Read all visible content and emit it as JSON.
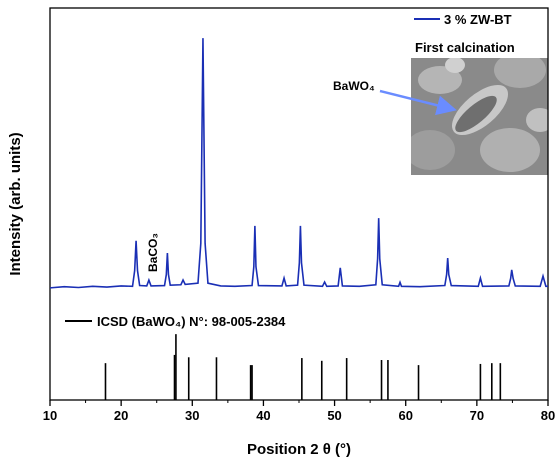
{
  "chart_data": {
    "type": "line",
    "x_label": "Position 2 θ (°)",
    "y_label": "Intensity (arb. units)",
    "xlim": [
      10,
      80
    ],
    "xticks": [
      10,
      20,
      30,
      40,
      50,
      60,
      70,
      80
    ],
    "ylim": [
      0,
      100
    ],
    "legend_note": "First calcination",
    "annotations": [
      "BaCO₃",
      "BaWO₄"
    ],
    "series": [
      {
        "name": "3 % ZW-BT",
        "color": "#1a2fb5",
        "x": [
          10,
          12,
          14,
          16,
          18,
          20,
          21.6,
          21.9,
          22.1,
          22.3,
          22.6,
          23.6,
          23.9,
          24.2,
          26.1,
          26.35,
          26.5,
          26.65,
          26.9,
          28.4,
          28.7,
          29.0,
          30.8,
          31.2,
          31.5,
          31.8,
          32.2,
          34,
          36,
          38.4,
          38.65,
          38.8,
          38.95,
          39.3,
          42.6,
          42.9,
          43.2,
          44.8,
          45.05,
          45.2,
          45.35,
          45.7,
          48.3,
          48.6,
          48.9,
          50.5,
          50.8,
          51.1,
          53.5,
          55.8,
          56.05,
          56.2,
          56.35,
          56.7,
          59.0,
          59.2,
          59.4,
          62,
          65.5,
          65.75,
          65.9,
          66.05,
          66.4,
          70.2,
          70.5,
          70.8,
          74.5,
          74.75,
          74.9,
          75.1,
          75.4,
          78.9,
          79.3,
          79.7,
          80
        ],
        "values": [
          28.6,
          28.9,
          28.7,
          29.0,
          28.8,
          29.1,
          29.0,
          33,
          40.6,
          33,
          29.2,
          29.1,
          30.6,
          29.1,
          29.2,
          32,
          37.5,
          32,
          29.3,
          29.4,
          30.6,
          29.5,
          29.8,
          40,
          92.3,
          40,
          29.8,
          29.1,
          29.0,
          29.2,
          34,
          44.4,
          34,
          29.2,
          29.1,
          31.1,
          29.1,
          29.3,
          35,
          44.4,
          35,
          29.3,
          29.0,
          30.1,
          29.0,
          29.1,
          33.7,
          29.1,
          29.0,
          29.4,
          36,
          46.4,
          36,
          29.4,
          29.0,
          30.0,
          29.0,
          28.9,
          29.2,
          32,
          36.2,
          32,
          29.2,
          29.0,
          31.1,
          29.0,
          29.1,
          31,
          33.2,
          31,
          29.1,
          29.0,
          31.6,
          29.0,
          29.0
        ]
      },
      {
        "name": "ICSD (BaWO₄) N°: 98-005-2384",
        "color": "#000000",
        "type": "stick",
        "x": [
          17.8,
          27.5,
          27.7,
          29.5,
          33.4,
          38.2,
          38.4,
          45.4,
          48.2,
          51.7,
          56.6,
          57.5,
          61.8,
          70.5,
          72.1,
          73.3
        ],
        "values": [
          9.4,
          11.5,
          16.8,
          10.9,
          10.9,
          8.9,
          8.9,
          10.7,
          10.0,
          10.7,
          10.2,
          10.2,
          8.9,
          9.2,
          9.4,
          9.4
        ]
      }
    ]
  }
}
